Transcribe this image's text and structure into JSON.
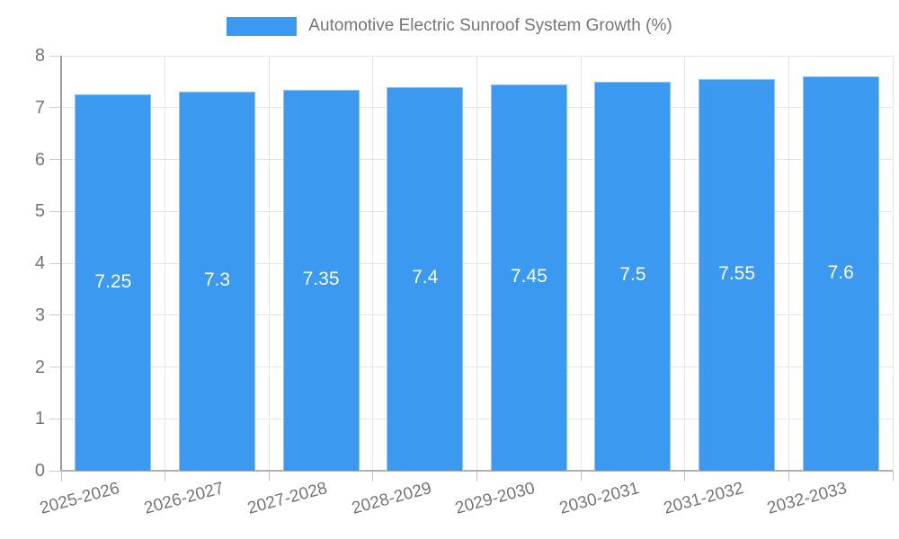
{
  "chart_data": {
    "type": "bar",
    "title": "Automotive Electric Sunroof System Growth (%)",
    "legend_position": "top",
    "categories": [
      "2025-2026",
      "2026-2027",
      "2027-2028",
      "2028-2029",
      "2029-2030",
      "2030-2031",
      "2031-2032",
      "2032-2033"
    ],
    "values": [
      7.25,
      7.3,
      7.35,
      7.4,
      7.45,
      7.5,
      7.55,
      7.6
    ],
    "value_labels": [
      "7.25",
      "7.3",
      "7.35",
      "7.4",
      "7.45",
      "7.5",
      "7.55",
      "7.6"
    ],
    "xlabel": "",
    "ylabel": "",
    "ylim": [
      0,
      8
    ],
    "y_ticks": [
      0,
      1,
      2,
      3,
      4,
      5,
      6,
      7,
      8
    ],
    "grid": true,
    "colors": {
      "bar": "#3b99f0",
      "bar_border": "#8fc3f5",
      "value_label": "#ffffff",
      "axis_text": "#757575",
      "gridline": "#e6e6e6",
      "axis_line": "#9e9e9e"
    }
  }
}
